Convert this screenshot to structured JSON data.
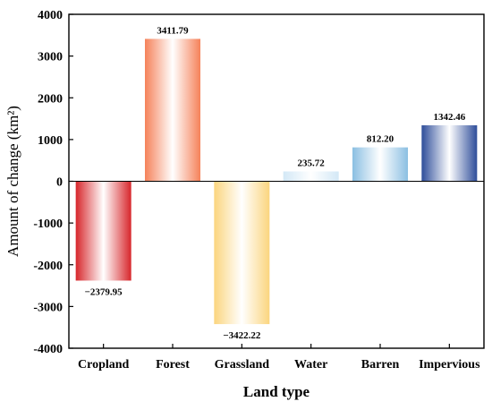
{
  "chart_data": {
    "type": "bar",
    "title": "",
    "xlabel": "Land type",
    "ylabel": "Amount of change (km²)",
    "ylim": [
      -4000,
      4000
    ],
    "yticks": [
      4000,
      3000,
      2000,
      1000,
      0,
      -1000,
      -2000,
      -3000,
      -4000
    ],
    "ytick_labels": [
      "4000",
      "3000",
      "2000",
      "1000",
      "0",
      "-1000",
      "-2000",
      "-3000",
      "-4000"
    ],
    "grid": false,
    "categories": [
      "Cropland",
      "Forest",
      "Grassland",
      "Water",
      "Barren",
      "Impervious"
    ],
    "values": [
      -2379.95,
      3411.79,
      -3422.22,
      235.72,
      812.2,
      1342.46
    ],
    "data_labels": [
      "−2379.95",
      "3411.79",
      "−3422.22",
      "235.72",
      "812.20",
      "1342.46"
    ],
    "colors": [
      "#d7262b",
      "#f5825a",
      "#fbd57e",
      "#d3e8f6",
      "#8bbfe2",
      "#2e4d9a"
    ]
  }
}
